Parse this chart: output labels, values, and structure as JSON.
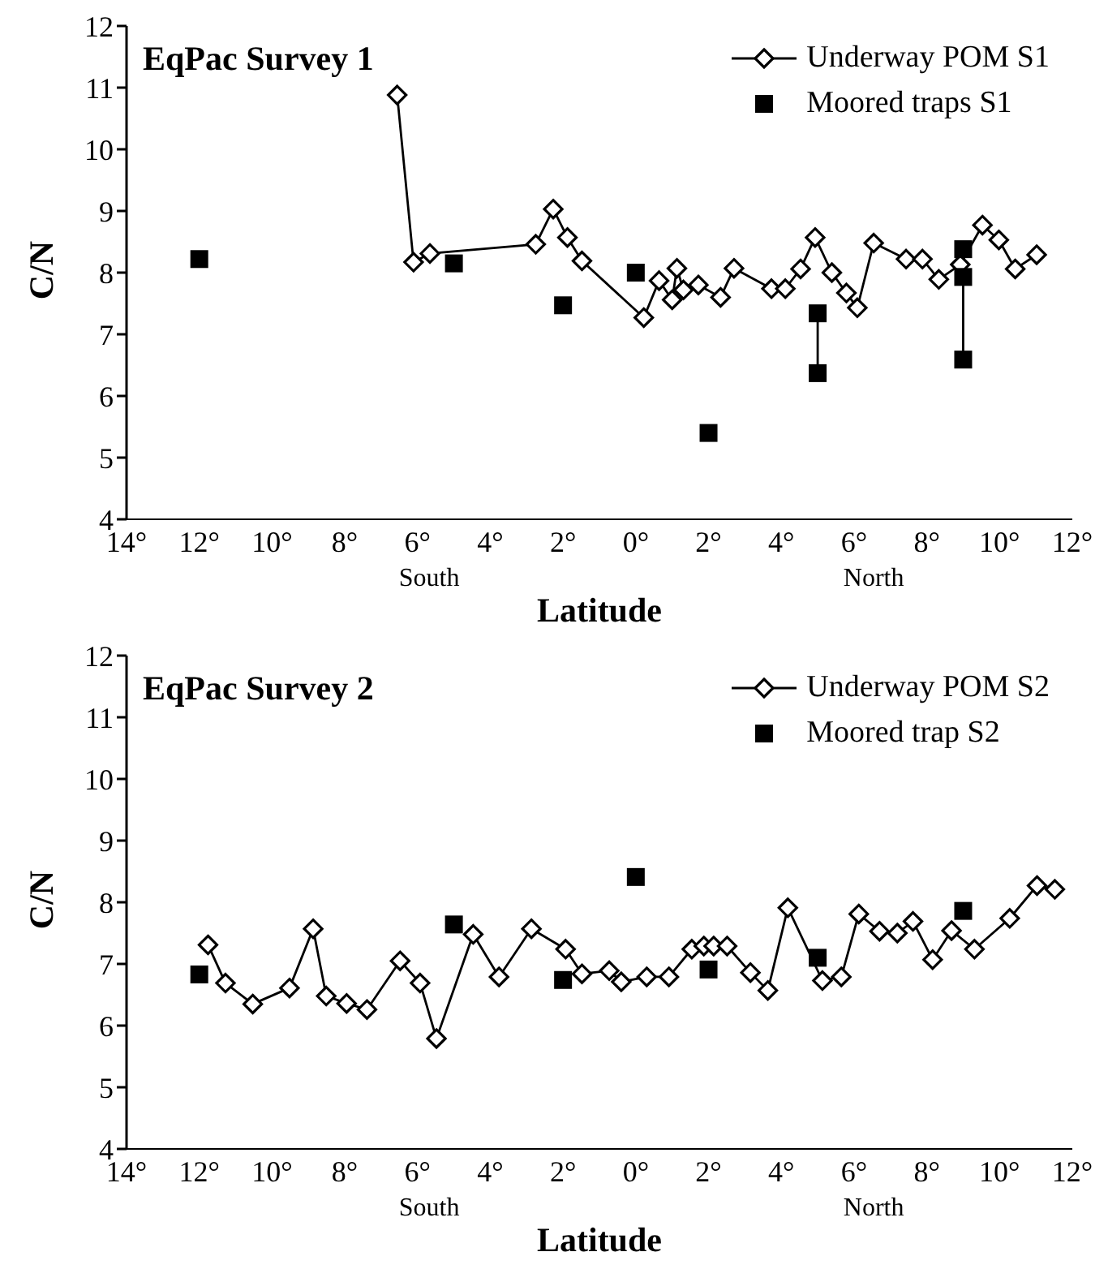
{
  "chart_data": [
    {
      "type": "line",
      "title": "EqPac Survey 1",
      "xlabel": "Latitude",
      "ylabel": "C/N",
      "annotations": [
        "South",
        "North"
      ],
      "xlim": [
        -14,
        12
      ],
      "xticks": [
        {
          "value": -14,
          "label": "14°"
        },
        {
          "value": -12,
          "label": "12°"
        },
        {
          "value": -10,
          "label": "10°"
        },
        {
          "value": -8,
          "label": "8°"
        },
        {
          "value": -6,
          "label": "6°"
        },
        {
          "value": -4,
          "label": "4°"
        },
        {
          "value": -2,
          "label": "2°"
        },
        {
          "value": 0,
          "label": "0°"
        },
        {
          "value": 2,
          "label": "2°"
        },
        {
          "value": 4,
          "label": "4°"
        },
        {
          "value": 6,
          "label": "6°"
        },
        {
          "value": 8,
          "label": "8°"
        },
        {
          "value": 10,
          "label": "10°"
        },
        {
          "value": 12,
          "label": "12°"
        }
      ],
      "ylim": [
        4,
        12
      ],
      "yticks": [
        4,
        5,
        6,
        7,
        8,
        9,
        10,
        11,
        12
      ],
      "grid": false,
      "legend": "top right",
      "series": [
        {
          "name": "Underway POM S1",
          "marker": "diamond",
          "line_style": "solid",
          "color": "#000000",
          "x": [
            -6.56,
            -6.11,
            -5.66,
            -2.75,
            -2.27,
            -1.88,
            -1.48,
            0.22,
            0.64,
            1.0,
            1.13,
            1.31,
            1.72,
            2.33,
            2.7,
            3.73,
            4.11,
            4.53,
            4.93,
            5.39,
            5.79,
            6.09,
            6.54,
            7.43,
            7.88,
            8.33,
            8.92,
            9.53,
            9.98,
            10.43,
            11.02
          ],
          "values": [
            10.88,
            8.17,
            8.31,
            8.46,
            9.03,
            8.57,
            8.19,
            7.27,
            7.87,
            7.56,
            8.07,
            7.72,
            7.8,
            7.6,
            8.07,
            7.74,
            7.74,
            8.06,
            8.57,
            8.0,
            7.67,
            7.43,
            8.48,
            8.22,
            8.22,
            7.89,
            8.13,
            8.77,
            8.53,
            8.06,
            8.29
          ]
        },
        {
          "type": "line",
          "marker": "none",
          "color": "#000000",
          "x": [
            5,
            5
          ],
          "values": [
            7.34,
            6.37
          ]
        },
        {
          "type": "line",
          "marker": "none",
          "color": "#000000",
          "x": [
            9,
            9
          ],
          "values": [
            8.38,
            6.59
          ]
        },
        {
          "name": "Moored traps S1",
          "type": "scatter",
          "marker": "square",
          "color": "#000000",
          "x": [
            -12,
            -5,
            -2,
            0,
            2,
            5,
            5,
            9,
            9,
            9
          ],
          "values": [
            8.22,
            8.15,
            7.47,
            8.0,
            5.4,
            7.34,
            6.37,
            8.38,
            7.93,
            6.59
          ]
        }
      ]
    },
    {
      "type": "line",
      "title": "EqPac Survey 2",
      "xlabel": "Latitude",
      "ylabel": "C/N",
      "annotations": [
        "South",
        "North"
      ],
      "xlim": [
        -14,
        12
      ],
      "xticks": [
        {
          "value": -14,
          "label": "14°"
        },
        {
          "value": -12,
          "label": "12°"
        },
        {
          "value": -10,
          "label": "10°"
        },
        {
          "value": -8,
          "label": "8°"
        },
        {
          "value": -6,
          "label": "6°"
        },
        {
          "value": -4,
          "label": "4°"
        },
        {
          "value": -2,
          "label": "2°"
        },
        {
          "value": 0,
          "label": "0°"
        },
        {
          "value": 2,
          "label": "2°"
        },
        {
          "value": 4,
          "label": "4°"
        },
        {
          "value": 6,
          "label": "6°"
        },
        {
          "value": 8,
          "label": "8°"
        },
        {
          "value": 10,
          "label": "10°"
        },
        {
          "value": 12,
          "label": "12°"
        }
      ],
      "ylim": [
        4,
        12
      ],
      "yticks": [
        4,
        5,
        6,
        7,
        8,
        9,
        10,
        11,
        12
      ],
      "grid": false,
      "legend": "top right",
      "series": [
        {
          "name": "Underway POM S2",
          "marker": "diamond",
          "line_style": "solid",
          "color": "#000000",
          "x": [
            -11.76,
            -11.28,
            -10.53,
            -9.52,
            -8.87,
            -8.51,
            -7.95,
            -7.39,
            -6.48,
            -5.93,
            -5.48,
            -4.47,
            -3.76,
            -2.87,
            -1.93,
            -1.48,
            -0.73,
            -0.4,
            0.3,
            0.91,
            1.54,
            1.87,
            2.14,
            2.51,
            3.15,
            3.63,
            4.18,
            5.13,
            5.65,
            6.13,
            6.7,
            7.19,
            7.62,
            8.16,
            8.68,
            9.31,
            10.28,
            11.03,
            11.52
          ],
          "values": [
            7.31,
            6.69,
            6.35,
            6.61,
            7.57,
            6.48,
            6.36,
            6.26,
            7.05,
            6.69,
            5.79,
            7.48,
            6.79,
            7.57,
            7.24,
            6.84,
            6.89,
            6.71,
            6.79,
            6.79,
            7.24,
            7.29,
            7.29,
            7.29,
            6.86,
            6.57,
            7.91,
            6.73,
            6.79,
            7.81,
            7.53,
            7.5,
            7.69,
            7.07,
            7.54,
            7.24,
            7.74,
            8.27,
            8.21
          ]
        },
        {
          "name": "Moored trap S2",
          "type": "scatter",
          "marker": "square",
          "color": "#000000",
          "x": [
            -12,
            -5,
            -2,
            0,
            2,
            5,
            9
          ],
          "values": [
            6.83,
            7.64,
            6.74,
            8.41,
            6.91,
            7.1,
            7.86
          ]
        }
      ]
    }
  ]
}
